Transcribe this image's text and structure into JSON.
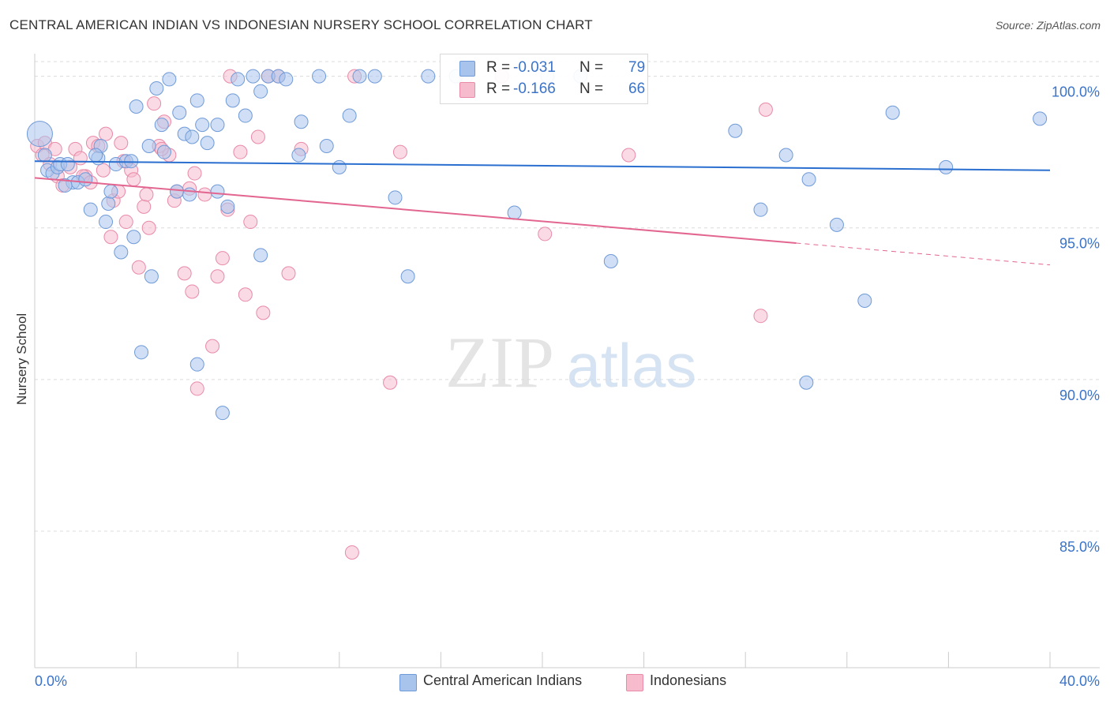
{
  "header": {
    "title": "CENTRAL AMERICAN INDIAN VS INDONESIAN NURSERY SCHOOL CORRELATION CHART",
    "source": "Source: ZipAtlas.com"
  },
  "watermark": {
    "zip": "ZIP",
    "atlas": "atlas"
  },
  "colors": {
    "blue_fill": "#a9c4ec",
    "blue_stroke": "#6f9ad8",
    "blue_line": "#2a6fcf",
    "pink_fill": "#f6bccd",
    "pink_stroke": "#e98aa8",
    "pink_line": "#e2668f",
    "tick_text": "#3b73c8",
    "grid": "#dcdcdc"
  },
  "legend": {
    "rows": [
      {
        "r_label": "R =",
        "r_value": "-0.031",
        "n_label": "N =",
        "n_value": "79"
      },
      {
        "r_label": "R =",
        "r_value": "-0.166",
        "n_label": "N =",
        "n_value": "66"
      }
    ],
    "series": [
      "Central American Indians",
      "Indonesians"
    ]
  },
  "chart_data": {
    "type": "scatter",
    "title": "CENTRAL AMERICAN INDIAN VS INDONESIAN NURSERY SCHOOL CORRELATION CHART",
    "xlabel": "",
    "ylabel": "Nursery School",
    "xlim": [
      0,
      40
    ],
    "ylim": [
      80.5,
      100.9
    ],
    "x_tick_labels": [
      "0.0%",
      "40.0%"
    ],
    "y_ticks": [
      85,
      90,
      95,
      100
    ],
    "y_tick_labels": [
      "85.0%",
      "90.0%",
      "95.0%",
      "100.0%"
    ],
    "grid": true,
    "legend_position": "top-center",
    "series": [
      {
        "name": "Central American Indians",
        "R": -0.031,
        "N": 79,
        "trend": {
          "x": [
            0,
            40
          ],
          "y": [
            97.2,
            96.9
          ]
        },
        "points": [
          [
            0.2,
            98.1
          ],
          [
            0.4,
            97.4
          ],
          [
            0.5,
            96.9
          ],
          [
            0.7,
            96.8
          ],
          [
            0.9,
            97.0
          ],
          [
            1.0,
            97.1
          ],
          [
            1.3,
            97.1
          ],
          [
            1.5,
            96.5
          ],
          [
            1.7,
            96.5
          ],
          [
            2.0,
            96.6
          ],
          [
            2.2,
            95.6
          ],
          [
            2.5,
            97.3
          ],
          [
            2.6,
            97.7
          ],
          [
            2.8,
            95.2
          ],
          [
            2.9,
            95.8
          ],
          [
            3.2,
            97.1
          ],
          [
            3.4,
            94.2
          ],
          [
            3.6,
            97.2
          ],
          [
            3.8,
            97.2
          ],
          [
            3.9,
            94.7
          ],
          [
            4.0,
            99.0
          ],
          [
            4.2,
            90.9
          ],
          [
            4.5,
            97.7
          ],
          [
            4.6,
            93.4
          ],
          [
            4.8,
            99.6
          ],
          [
            5.0,
            98.4
          ],
          [
            5.1,
            97.5
          ],
          [
            5.3,
            99.9
          ],
          [
            5.6,
            96.2
          ],
          [
            5.7,
            98.8
          ],
          [
            5.9,
            98.1
          ],
          [
            6.2,
            98.0
          ],
          [
            6.4,
            99.2
          ],
          [
            6.6,
            98.4
          ],
          [
            6.8,
            97.8
          ],
          [
            6.4,
            90.5
          ],
          [
            7.2,
            98.4
          ],
          [
            7.2,
            96.2
          ],
          [
            7.4,
            88.9
          ],
          [
            7.6,
            95.7
          ],
          [
            7.8,
            99.2
          ],
          [
            8.0,
            99.9
          ],
          [
            8.3,
            98.7
          ],
          [
            8.6,
            100.0
          ],
          [
            8.9,
            94.1
          ],
          [
            9.2,
            100.0
          ],
          [
            9.6,
            100.0
          ],
          [
            9.9,
            99.9
          ],
          [
            10.4,
            97.4
          ],
          [
            10.5,
            98.5
          ],
          [
            11.2,
            100.0
          ],
          [
            11.5,
            97.7
          ],
          [
            12.4,
            98.7
          ],
          [
            12.8,
            100.0
          ],
          [
            13.4,
            100.0
          ],
          [
            14.2,
            96.0
          ],
          [
            14.7,
            93.4
          ],
          [
            15.5,
            100.0
          ],
          [
            16.6,
            100.0
          ],
          [
            18.9,
            95.5
          ],
          [
            20.2,
            100.0
          ],
          [
            21.5,
            100.0
          ],
          [
            22.7,
            93.9
          ],
          [
            27.6,
            98.2
          ],
          [
            28.6,
            95.6
          ],
          [
            29.6,
            97.4
          ],
          [
            30.4,
            89.9
          ],
          [
            30.5,
            96.6
          ],
          [
            31.6,
            95.1
          ],
          [
            32.7,
            92.6
          ],
          [
            33.8,
            98.8
          ],
          [
            35.9,
            97.0
          ],
          [
            39.6,
            98.6
          ],
          [
            1.2,
            96.4
          ],
          [
            2.4,
            97.4
          ],
          [
            3.0,
            96.2
          ],
          [
            6.1,
            96.1
          ],
          [
            8.9,
            99.5
          ],
          [
            12.0,
            97.0
          ]
        ]
      },
      {
        "name": "Indonesians",
        "R": -0.166,
        "N": 66,
        "trend": {
          "x": [
            0,
            30
          ],
          "y": [
            96.65,
            94.5
          ]
        },
        "trend_dashed": {
          "x": [
            30,
            40
          ],
          "y": [
            94.5,
            93.78
          ]
        },
        "points": [
          [
            0.1,
            97.7
          ],
          [
            0.3,
            97.4
          ],
          [
            0.4,
            97.8
          ],
          [
            0.8,
            97.6
          ],
          [
            0.9,
            96.7
          ],
          [
            1.1,
            96.4
          ],
          [
            1.4,
            97.0
          ],
          [
            1.6,
            97.6
          ],
          [
            1.8,
            97.3
          ],
          [
            2.0,
            96.7
          ],
          [
            2.3,
            97.8
          ],
          [
            2.5,
            97.7
          ],
          [
            2.7,
            96.9
          ],
          [
            2.8,
            98.1
          ],
          [
            3.0,
            94.7
          ],
          [
            3.1,
            95.9
          ],
          [
            3.3,
            96.2
          ],
          [
            3.5,
            97.2
          ],
          [
            3.6,
            95.2
          ],
          [
            3.8,
            96.9
          ],
          [
            3.9,
            96.6
          ],
          [
            4.1,
            93.7
          ],
          [
            4.3,
            95.7
          ],
          [
            4.4,
            96.1
          ],
          [
            4.7,
            99.1
          ],
          [
            4.9,
            97.7
          ],
          [
            5.1,
            98.5
          ],
          [
            5.3,
            97.4
          ],
          [
            5.5,
            95.9
          ],
          [
            5.6,
            96.2
          ],
          [
            5.9,
            93.5
          ],
          [
            6.1,
            96.3
          ],
          [
            6.2,
            92.9
          ],
          [
            6.4,
            89.7
          ],
          [
            6.7,
            96.1
          ],
          [
            7.0,
            91.1
          ],
          [
            7.2,
            93.4
          ],
          [
            7.4,
            94.0
          ],
          [
            7.6,
            95.6
          ],
          [
            7.7,
            100.0
          ],
          [
            8.1,
            97.5
          ],
          [
            8.3,
            92.8
          ],
          [
            8.5,
            95.2
          ],
          [
            8.8,
            98.0
          ],
          [
            9.0,
            92.2
          ],
          [
            9.6,
            100.0
          ],
          [
            10.0,
            93.5
          ],
          [
            10.5,
            97.6
          ],
          [
            12.6,
            100.0
          ],
          [
            12.5,
            84.3
          ],
          [
            14.0,
            89.9
          ],
          [
            14.4,
            97.5
          ],
          [
            17.0,
            100.0
          ],
          [
            18.4,
            100.0
          ],
          [
            20.1,
            94.8
          ],
          [
            23.4,
            97.4
          ],
          [
            28.6,
            92.1
          ],
          [
            28.8,
            98.9
          ],
          [
            1.9,
            96.7
          ],
          [
            3.4,
            97.8
          ],
          [
            4.5,
            95.0
          ],
          [
            6.3,
            96.8
          ],
          [
            9.2,
            100.0
          ],
          [
            5.0,
            97.6
          ],
          [
            2.2,
            96.5
          ],
          [
            0.6,
            97.1
          ]
        ]
      }
    ]
  }
}
